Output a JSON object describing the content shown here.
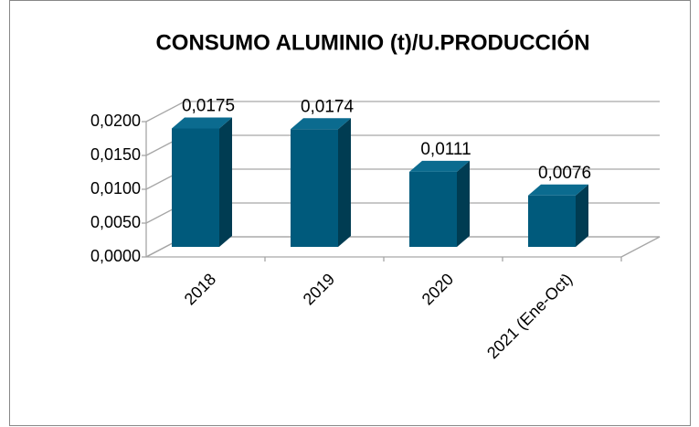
{
  "chart_data": {
    "type": "bar3d",
    "title": "CONSUMO ALUMINIO (t)/U.PRODUCCIÓN",
    "categories": [
      "2018",
      "2019",
      "2020",
      "2021 (Ene-Oct)"
    ],
    "values": [
      0.0175,
      0.0174,
      0.0111,
      0.0076
    ],
    "value_labels": [
      "0,0175",
      "0,0174",
      "0,0111",
      "0,0076"
    ],
    "color": "#005a7c",
    "ylim": [
      0,
      0.02
    ],
    "yticks": [
      {
        "value": 0,
        "label": "0,0000"
      },
      {
        "value": 0.005,
        "label": "0,0050"
      },
      {
        "value": 0.01,
        "label": "0,0100"
      },
      {
        "value": 0.015,
        "label": "0,0150"
      },
      {
        "value": 0.02,
        "label": "0,0200"
      }
    ],
    "grid": true
  }
}
